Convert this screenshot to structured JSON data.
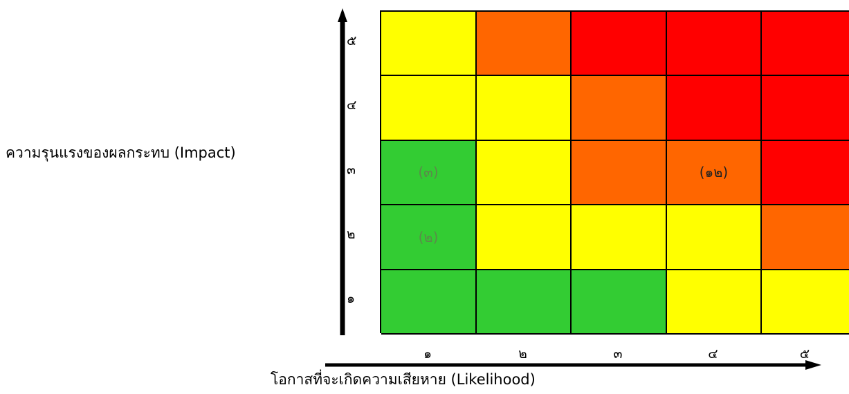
{
  "ylabel": "ความรุนแรงของผลกระทบ (Impact)",
  "xlabel": "โอกาสที่จะเกิดความเสียหาย (Likelihood)",
  "y_ticks": [
    "๕",
    "๔",
    "๓",
    "๒",
    "๑"
  ],
  "x_ticks": [
    "๑",
    "๒",
    "๓",
    "๔",
    "๕"
  ],
  "colors": {
    "green": "#33cc33",
    "yellow": "#ffff00",
    "orange": "#ff6600",
    "red": "#ff0000",
    "label_green": "#5b8a4a",
    "label_dark": "#222222"
  },
  "matrix": [
    [
      {
        "color": "yellow",
        "text": ""
      },
      {
        "color": "orange",
        "text": ""
      },
      {
        "color": "red",
        "text": ""
      },
      {
        "color": "red",
        "text": ""
      },
      {
        "color": "red",
        "text": ""
      }
    ],
    [
      {
        "color": "yellow",
        "text": ""
      },
      {
        "color": "yellow",
        "text": ""
      },
      {
        "color": "orange",
        "text": ""
      },
      {
        "color": "red",
        "text": ""
      },
      {
        "color": "red",
        "text": ""
      }
    ],
    [
      {
        "color": "green",
        "text": "(๓)",
        "text_color": "label_green"
      },
      {
        "color": "yellow",
        "text": ""
      },
      {
        "color": "orange",
        "text": ""
      },
      {
        "color": "orange",
        "text": "(๑๒)",
        "text_color": "label_dark"
      },
      {
        "color": "red",
        "text": ""
      }
    ],
    [
      {
        "color": "green",
        "text": "(๒)",
        "text_color": "label_green"
      },
      {
        "color": "yellow",
        "text": ""
      },
      {
        "color": "yellow",
        "text": ""
      },
      {
        "color": "yellow",
        "text": ""
      },
      {
        "color": "orange",
        "text": ""
      }
    ],
    [
      {
        "color": "green",
        "text": ""
      },
      {
        "color": "green",
        "text": ""
      },
      {
        "color": "green",
        "text": ""
      },
      {
        "color": "yellow",
        "text": ""
      },
      {
        "color": "yellow",
        "text": ""
      }
    ]
  ]
}
